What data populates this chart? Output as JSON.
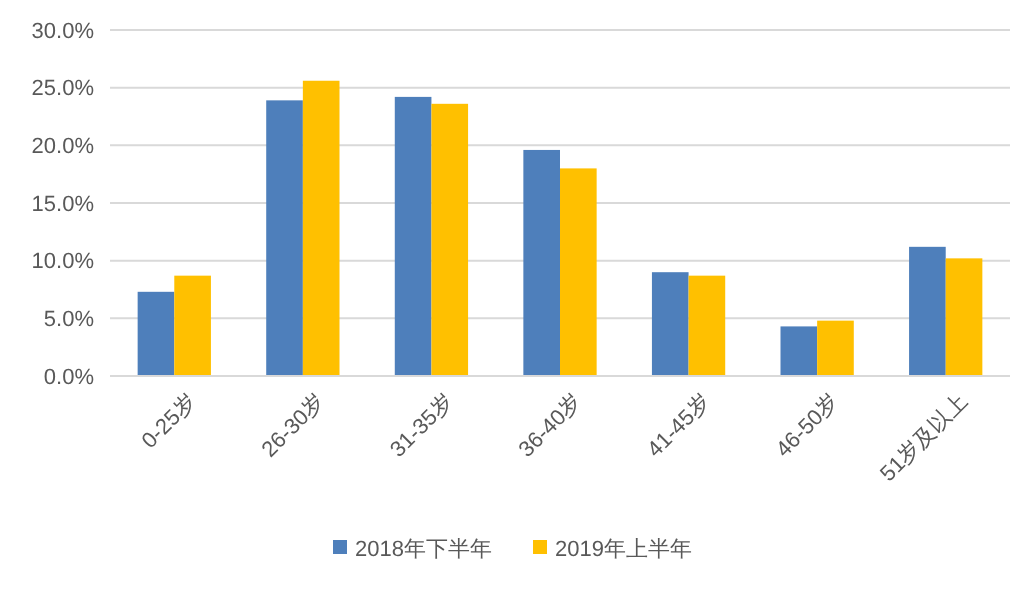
{
  "chart_data": {
    "type": "bar",
    "categories": [
      "0-25岁",
      "26-30岁",
      "31-35岁",
      "36-40岁",
      "41-45岁",
      "46-50岁",
      "51岁及以上"
    ],
    "series": [
      {
        "name": "2018年下半年",
        "color": "#4e7fbb",
        "values": [
          7.3,
          23.9,
          24.2,
          19.6,
          9.0,
          4.3,
          11.2
        ]
      },
      {
        "name": "2019年上半年",
        "color": "#ffc000",
        "values": [
          8.7,
          25.6,
          23.6,
          18.0,
          8.7,
          4.8,
          10.2
        ]
      }
    ],
    "ylim": [
      0,
      30
    ],
    "yticks": [
      {
        "value": 0,
        "label": "0.0%"
      },
      {
        "value": 5,
        "label": "5.0%"
      },
      {
        "value": 10,
        "label": "10.0%"
      },
      {
        "value": 15,
        "label": "15.0%"
      },
      {
        "value": 20,
        "label": "20.0%"
      },
      {
        "value": 25,
        "label": "25.0%"
      },
      {
        "value": 30,
        "label": "30.0%"
      }
    ],
    "grid": "y",
    "legend": "bottom"
  }
}
